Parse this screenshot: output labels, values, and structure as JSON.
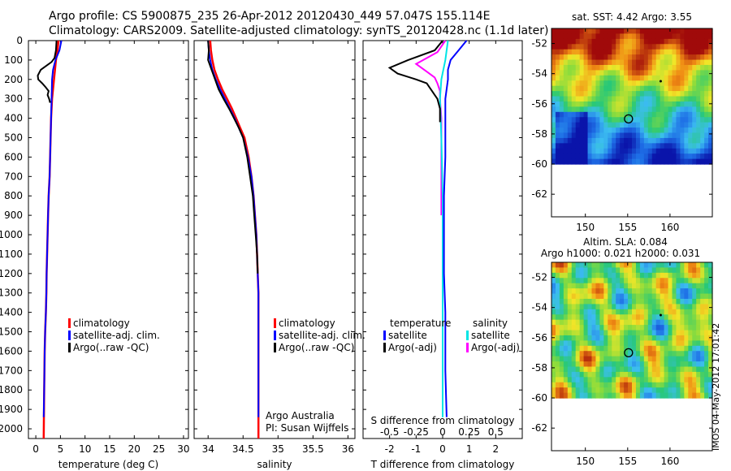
{
  "header": {
    "line1": "Argo profile: CS 5900875_235 26-Apr-2012 20120430_449 57.047S 155.114E",
    "line2": "Climatology: CARS2009. Satellite-adjusted climatology: synTS_20120428.nc (1.1d later)"
  },
  "stamp": "IMOS 04-May-2012 17:01:42",
  "depth_ticks": [
    0,
    100,
    200,
    300,
    400,
    500,
    600,
    700,
    800,
    900,
    1000,
    1100,
    1200,
    1300,
    1400,
    1500,
    1600,
    1700,
    1800,
    1900,
    2000
  ],
  "colors": {
    "climatology": "#ff0000",
    "satellite": "#0000ff",
    "argo": "#000000",
    "sal_satellite": "#00e5e5",
    "sal_argo": "#ff00ff"
  },
  "chart_data": [
    {
      "type": "line",
      "xlabel": "temperature (deg C)",
      "ylabel": "",
      "xlim": [
        -1.5,
        31
      ],
      "xticks": [
        0,
        5,
        10,
        15,
        20,
        25,
        30
      ],
      "ylim": [
        2050,
        0
      ],
      "legend": [
        "climatology",
        "satellite-adj. clim.",
        "Argo(..raw -QC)"
      ],
      "series": [
        {
          "name": "climatology",
          "x": [
            4.6,
            4.4,
            4.1,
            3.9,
            3.7,
            3.3,
            3.1,
            3.0,
            2.9,
            2.8,
            2.6,
            2.5,
            2.4,
            2.3,
            2.2,
            2.15,
            2.05,
            1.9,
            1.8,
            1.75,
            1.7,
            1.6
          ],
          "y": [
            0,
            50,
            100,
            150,
            200,
            300,
            400,
            500,
            600,
            700,
            800,
            900,
            1000,
            1100,
            1200,
            1300,
            1400,
            1500,
            1600,
            1700,
            1800,
            2050
          ]
        },
        {
          "name": "satellite-adj. clim.",
          "x": [
            5.2,
            4.8,
            4.0,
            3.5,
            3.3,
            3.1,
            3.0,
            2.9,
            2.8,
            2.6,
            2.5,
            2.4,
            2.3,
            2.2,
            2.15,
            2.05,
            1.9,
            1.8,
            1.75,
            1.7,
            1.6
          ],
          "y": [
            0,
            50,
            100,
            150,
            200,
            400,
            500,
            600,
            700,
            800,
            900,
            1000,
            1100,
            1200,
            1300,
            1400,
            1500,
            1600,
            1700,
            1800,
            1940
          ]
        },
        {
          "name": "Argo(..raw -QC)",
          "x": [
            4.2,
            4.1,
            3.8,
            3.2,
            1.0,
            0.4,
            0.5,
            1.3,
            2.0,
            2.6,
            2.4,
            2.7,
            2.9
          ],
          "y": [
            0,
            50,
            90,
            110,
            150,
            180,
            200,
            220,
            240,
            260,
            280,
            300,
            320
          ]
        }
      ]
    },
    {
      "type": "line",
      "xlabel": "salinity",
      "ylabel": "",
      "xlim": [
        33.8,
        36.1
      ],
      "xticks": [
        34,
        34.5,
        35,
        35.5,
        36
      ],
      "ylim": [
        2050,
        0
      ],
      "legend": [
        "climatology",
        "satellite-adj. clim.",
        "Argo(..raw -QC)"
      ],
      "annotations": [
        "Argo Australia",
        "PI: Susan Wijffels"
      ],
      "series": [
        {
          "name": "climatology",
          "x": [
            34.03,
            34.04,
            34.06,
            34.09,
            34.14,
            34.2,
            34.27,
            34.34,
            34.4,
            34.46,
            34.52,
            34.58,
            34.62,
            34.65,
            34.67,
            34.69,
            34.7,
            34.71,
            34.72,
            34.72,
            34.72
          ],
          "y": [
            0,
            50,
            100,
            150,
            200,
            250,
            300,
            350,
            400,
            450,
            500,
            600,
            700,
            800,
            900,
            1000,
            1100,
            1200,
            1300,
            1500,
            2050
          ]
        },
        {
          "name": "satellite-adj. clim.",
          "x": [
            34.0,
            34.01,
            34.03,
            34.06,
            34.11,
            34.17,
            34.24,
            34.31,
            34.38,
            34.44,
            34.5,
            34.57,
            34.62,
            34.65,
            34.67,
            34.69,
            34.7,
            34.71,
            34.72,
            34.72,
            34.72
          ],
          "y": [
            0,
            50,
            100,
            150,
            200,
            250,
            300,
            350,
            400,
            450,
            500,
            600,
            700,
            800,
            900,
            1000,
            1100,
            1200,
            1300,
            1500,
            1940
          ]
        },
        {
          "name": "Argo(..raw -QC)",
          "x": [
            34.0,
            34.01,
            34.0,
            34.05,
            34.1,
            34.15,
            34.22,
            34.3,
            34.37,
            34.44,
            34.5,
            34.56,
            34.6,
            34.64,
            34.66,
            34.68,
            34.7,
            34.71
          ],
          "y": [
            0,
            50,
            100,
            150,
            200,
            250,
            300,
            350,
            400,
            450,
            500,
            600,
            700,
            800,
            900,
            1000,
            1100,
            1200
          ]
        }
      ]
    },
    {
      "type": "line",
      "xlabel": "T difference from climatology",
      "x2label": "S difference from climatology",
      "xlim": [
        -3,
        3
      ],
      "xticks": [
        -2,
        -1,
        0,
        1,
        2
      ],
      "xticks2_labels": [
        "-0.5",
        "-0.25",
        "0",
        "0.25",
        "0.5"
      ],
      "ylim": [
        2050,
        0
      ],
      "legend_title_left": "temperature",
      "legend_title_right": "salinity",
      "legend_left": [
        "satellite",
        "Argo(-adj)"
      ],
      "legend_right": [
        "satellite",
        "Argo(-adj)"
      ],
      "series": [
        {
          "name": "satellite",
          "x": [
            0.9,
            0.6,
            0.3,
            0.2,
            0.2,
            0.1,
            0.1,
            0.1,
            0.05,
            0.05,
            0.05,
            0.1,
            0.1,
            0.15
          ],
          "y": [
            0,
            50,
            100,
            150,
            200,
            300,
            400,
            600,
            800,
            1000,
            1200,
            1400,
            1700,
            1940
          ]
        },
        {
          "name": "Argo(-adj)",
          "x": [
            0.0,
            -0.3,
            -1.3,
            -2.0,
            -1.7,
            -1.0,
            -0.6,
            -0.5,
            -0.4,
            -0.3,
            -0.2,
            -0.1,
            -0.1
          ],
          "y": [
            0,
            50,
            100,
            140,
            170,
            200,
            220,
            240,
            260,
            280,
            300,
            350,
            420
          ]
        },
        {
          "name": "satellite",
          "x": [
            0.2,
            0.1,
            -0.05,
            -0.1,
            -0.05,
            0.0,
            0.0,
            0.0,
            0.0,
            0.0
          ],
          "y": [
            0,
            100,
            200,
            300,
            500,
            800,
            1000,
            1200,
            1500,
            1940
          ]
        },
        {
          "name": "Argo(-adj)",
          "x": [
            0.1,
            -0.2,
            -1.0,
            -0.6,
            -0.3,
            -0.2,
            -0.1,
            -0.1,
            -0.05,
            -0.05,
            -0.05
          ],
          "y": [
            0,
            60,
            120,
            160,
            190,
            220,
            260,
            300,
            400,
            600,
            900
          ]
        }
      ]
    },
    {
      "type": "heatmap",
      "title": "sat. SST: 4.42  Argo: 3.55",
      "xlim": [
        146,
        165
      ],
      "ylim": [
        -63.5,
        -51
      ],
      "xticks": [
        150,
        155,
        160
      ],
      "yticks": [
        -52,
        -54,
        -56,
        -58,
        -60,
        -62
      ],
      "marker": {
        "x": 155.1,
        "y": -57.0
      },
      "data_bottom": -60
    },
    {
      "type": "heatmap",
      "title": "Altim. SLA: 0.084",
      "subtitle": "Argo h1000: 0.021 h2000: 0.031",
      "xlim": [
        146,
        165
      ],
      "ylim": [
        -63.5,
        -51
      ],
      "xticks": [
        150,
        155,
        160
      ],
      "yticks": [
        -52,
        -54,
        -56,
        -58,
        -60,
        -62
      ],
      "marker": {
        "x": 155.1,
        "y": -57.0
      },
      "data_bottom": -60
    }
  ]
}
